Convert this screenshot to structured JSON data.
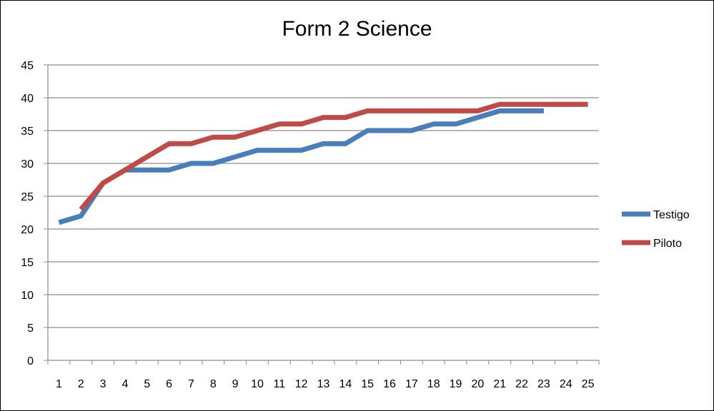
{
  "chart_data": {
    "type": "line",
    "title": "Form 2 Science",
    "xlabel": "",
    "ylabel": "",
    "ylim": [
      0,
      45
    ],
    "yticks": [
      0,
      5,
      10,
      15,
      20,
      25,
      30,
      35,
      40,
      45
    ],
    "categories": [
      "1",
      "2",
      "3",
      "4",
      "5",
      "6",
      "7",
      "8",
      "9",
      "10",
      "11",
      "12",
      "13",
      "14",
      "15",
      "16",
      "17",
      "18",
      "19",
      "20",
      "21",
      "22",
      "23",
      "24",
      "25"
    ],
    "grid": true,
    "legend_position": "right",
    "series": [
      {
        "name": "Testigo",
        "color": "#4a7ebb",
        "values": [
          21,
          22,
          27,
          29,
          29,
          29,
          30,
          30,
          31,
          32,
          32,
          32,
          33,
          33,
          35,
          35,
          35,
          36,
          36,
          37,
          38,
          38,
          38,
          null,
          null
        ]
      },
      {
        "name": "Piloto",
        "color": "#be4b48",
        "values": [
          null,
          23,
          27,
          29,
          31,
          33,
          33,
          34,
          34,
          35,
          36,
          36,
          37,
          37,
          38,
          38,
          38,
          38,
          38,
          38,
          39,
          39,
          39,
          39,
          39
        ]
      }
    ]
  }
}
